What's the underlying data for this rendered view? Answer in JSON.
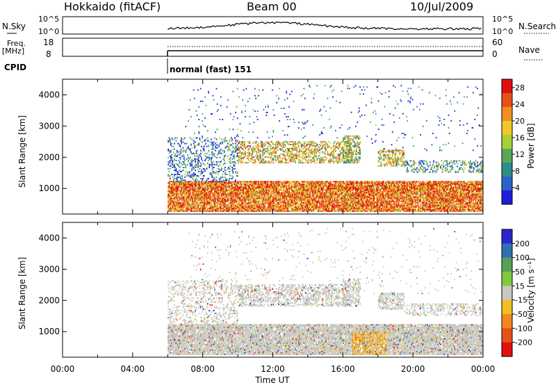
{
  "header": {
    "station": "Hokkaido (fitACF)",
    "beam": "Beam 00",
    "date": "10/Jul/2009"
  },
  "params": {
    "nsky_label": "N.Sky",
    "nsky_ticks": [
      "10^5",
      "10^0"
    ],
    "nsearch_label": "N.Search",
    "nsearch_ticks": [
      "10^5",
      "10^0"
    ],
    "freq_label": "Freq.",
    "freq_unit": "[MHz]",
    "freq_ticks": [
      "18",
      "8"
    ],
    "nave_label": "Nave",
    "nave_ticks": [
      "60",
      "0"
    ],
    "cpid_label": "CPID",
    "cpid_value": "normal (fast) 151"
  },
  "chart_data": [
    {
      "type": "heatmap",
      "name": "power",
      "ylabel": "Slant Range [km]",
      "xlabel": "Time UT",
      "x_ticks": [
        "00:00",
        "04:00",
        "08:00",
        "12:00",
        "16:00",
        "20:00",
        "00:00"
      ],
      "y_ticks": [
        1000,
        2000,
        3000,
        4000
      ],
      "ylim": [
        180,
        4500
      ],
      "xlim_hours": [
        0,
        24
      ],
      "data_start_hour": 6,
      "colorbar": {
        "label": "Power [dB]",
        "ticks": [
          4,
          8,
          12,
          16,
          20,
          24,
          28
        ],
        "range": [
          0,
          30
        ],
        "colors": [
          "#1e1ed8",
          "#2864c8",
          "#2e8c8c",
          "#58a858",
          "#a8d038",
          "#f0c828",
          "#f09020",
          "#e85018",
          "#e01010"
        ]
      }
    },
    {
      "type": "heatmap",
      "name": "velocity",
      "ylabel": "Slant Range [km]",
      "xlabel": "Time UT",
      "x_ticks": [
        "00:00",
        "04:00",
        "08:00",
        "12:00",
        "16:00",
        "20:00",
        "00:00"
      ],
      "y_ticks": [
        1000,
        2000,
        3000,
        4000
      ],
      "ylim": [
        180,
        4500
      ],
      "xlim_hours": [
        0,
        24
      ],
      "data_start_hour": 6,
      "colorbar": {
        "label": "Velocity [m s⁻¹]",
        "ticks": [
          200,
          100,
          50,
          15,
          -15,
          -50,
          -100,
          -200
        ],
        "colors": [
          "#2828c8",
          "#3070b0",
          "#58a058",
          "#80c840",
          "#c8c8c0",
          "#f0c020",
          "#f08820",
          "#e85018",
          "#e01010"
        ]
      }
    }
  ]
}
